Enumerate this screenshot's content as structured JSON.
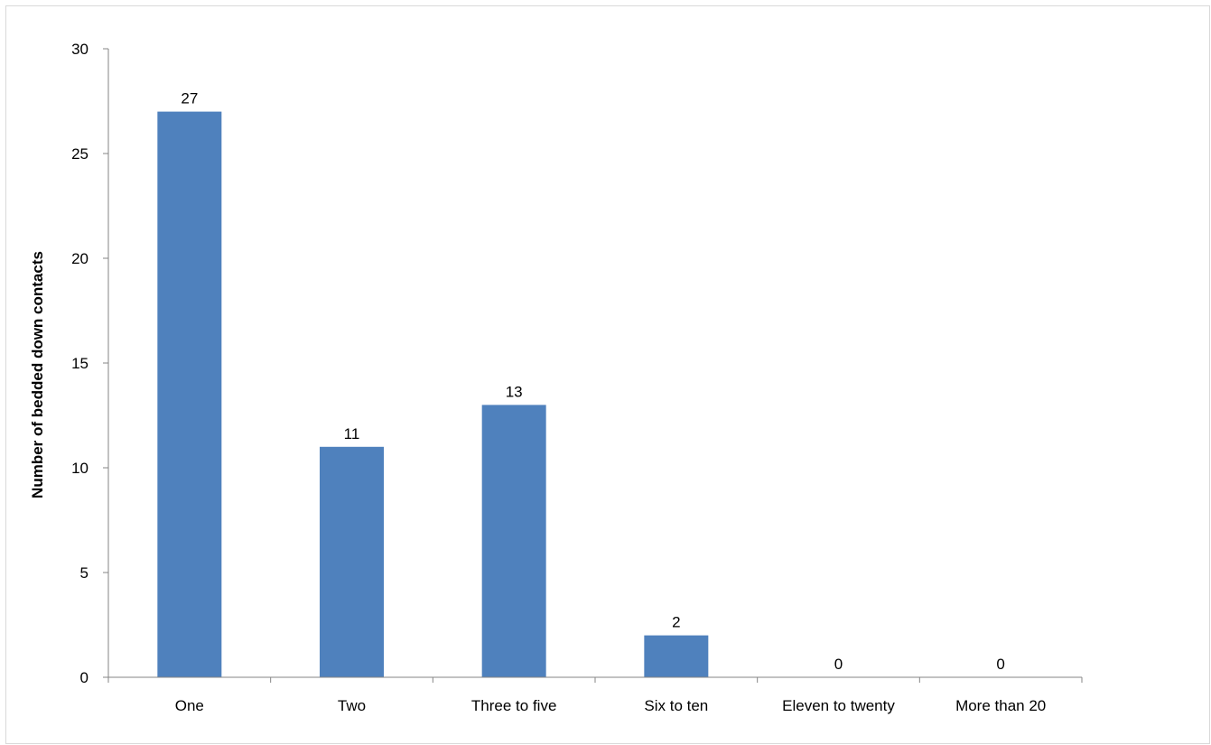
{
  "chart_data": {
    "type": "bar",
    "categories": [
      "One",
      "Two",
      "Three to five",
      "Six to ten",
      "Eleven to twenty",
      "More than 20"
    ],
    "values": [
      27,
      11,
      13,
      2,
      0,
      0
    ],
    "data_labels": [
      "27",
      "11",
      "13",
      "2",
      "0",
      "0"
    ],
    "title": "",
    "xlabel": "",
    "ylabel": "Number of bedded down contacts",
    "ylim": [
      0,
      30
    ],
    "yticks": [
      0,
      5,
      10,
      15,
      20,
      25,
      30
    ],
    "ytick_labels": [
      "0",
      "5",
      "10",
      "15",
      "20",
      "25",
      "30"
    ],
    "grid": false,
    "legend": "none",
    "colors": {
      "bar": "#4f81bd",
      "axis": "#868686"
    }
  }
}
